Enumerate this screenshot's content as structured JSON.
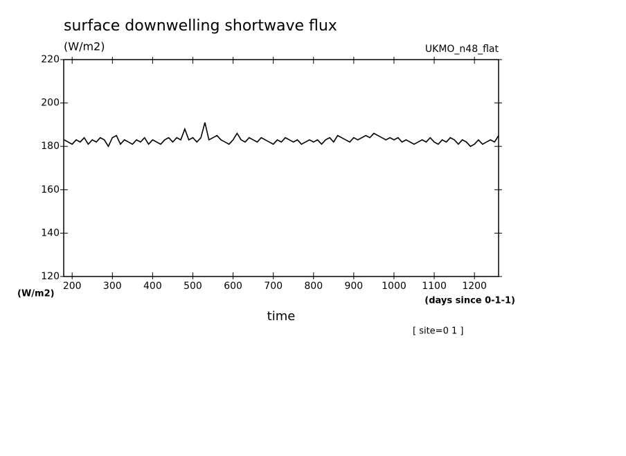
{
  "chart_data": {
    "type": "line",
    "title": "surface downwelling shortwave flux",
    "units_label": "(W/m2)",
    "dataset_label": "UKMO_n48_flat",
    "y_axis_label": "(W/m2)",
    "x_units_label": "(days since 0-1-1)",
    "x_axis_label": "time",
    "footnote": "[ site=0 1 ]",
    "color": "#000000",
    "xlim": [
      179,
      1260
    ],
    "ylim": [
      120,
      220
    ],
    "xticks": [
      200,
      300,
      400,
      500,
      600,
      700,
      800,
      900,
      1000,
      1100,
      1200
    ],
    "yticks": [
      120,
      140,
      160,
      180,
      200,
      220
    ],
    "x": [
      180,
      190,
      200,
      210,
      220,
      230,
      240,
      250,
      260,
      270,
      280,
      290,
      300,
      310,
      320,
      330,
      340,
      350,
      360,
      370,
      380,
      390,
      400,
      410,
      420,
      430,
      440,
      450,
      460,
      470,
      480,
      490,
      500,
      510,
      520,
      530,
      540,
      550,
      560,
      570,
      580,
      590,
      600,
      610,
      620,
      630,
      640,
      650,
      660,
      670,
      680,
      690,
      700,
      710,
      720,
      730,
      740,
      750,
      760,
      770,
      780,
      790,
      800,
      810,
      820,
      830,
      840,
      850,
      860,
      870,
      880,
      890,
      900,
      910,
      920,
      930,
      940,
      950,
      960,
      970,
      980,
      990,
      1000,
      1010,
      1020,
      1030,
      1040,
      1050,
      1060,
      1070,
      1080,
      1090,
      1100,
      1110,
      1120,
      1130,
      1140,
      1150,
      1160,
      1170,
      1180,
      1190,
      1200,
      1210,
      1220,
      1230,
      1240,
      1250,
      1260
    ],
    "values": [
      183,
      182,
      181,
      183,
      182,
      184,
      181,
      183,
      182,
      184,
      183,
      180,
      184,
      185,
      181,
      183,
      182,
      181,
      183,
      182,
      184,
      181,
      183,
      182,
      181,
      183,
      184,
      182,
      184,
      183,
      188,
      183,
      184,
      182,
      184,
      191,
      183,
      184,
      185,
      183,
      182,
      181,
      183,
      186,
      183,
      182,
      184,
      183,
      182,
      184,
      183,
      182,
      181,
      183,
      182,
      184,
      183,
      182,
      183,
      181,
      182,
      183,
      182,
      183,
      181,
      183,
      184,
      182,
      185,
      184,
      183,
      182,
      184,
      183,
      184,
      185,
      184,
      186,
      185,
      184,
      183,
      184,
      183,
      184,
      182,
      183,
      182,
      181,
      182,
      183,
      182,
      184,
      182,
      181,
      183,
      182,
      184,
      183,
      181,
      183,
      182,
      180,
      181,
      183,
      181,
      182,
      183,
      182,
      185
    ]
  }
}
